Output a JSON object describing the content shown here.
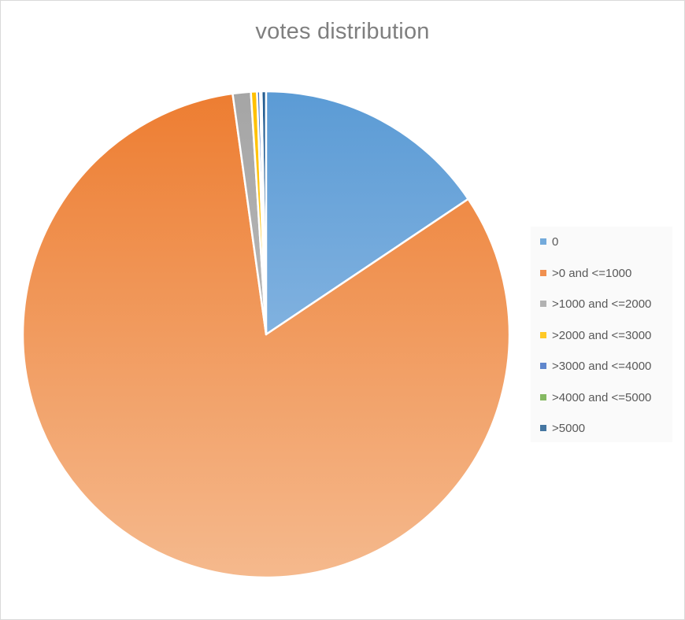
{
  "chart_data": {
    "type": "pie",
    "title": "votes distribution",
    "legend_position": "right",
    "categories": [
      ">5000",
      "0",
      ">0 and <=1000",
      ">1000 and <=2000",
      ">2000 and <=3000",
      ">3000 and <=4000",
      ">4000 and <=5000"
    ],
    "legend_order": [
      "0",
      ">0 and <=1000",
      ">1000 and <=2000",
      ">2000 and <=3000",
      ">3000 and <=4000",
      ">4000 and <=5000",
      ">5000"
    ],
    "series": [
      {
        "values": [
          0.3,
          15.6,
          82.2,
          1.2,
          0.4,
          0.2,
          0.1
        ]
      }
    ],
    "colors": {
      "0": [
        "#5b9bd5",
        "#a6c8ea"
      ],
      ">0 and <=1000": [
        "#ed7d31",
        "#f5b98d"
      ],
      ">1000 and <=2000": [
        "#a5a5a5",
        "#c9c9c9"
      ],
      ">2000 and <=3000": [
        "#ffc000",
        "#ffd966"
      ],
      ">3000 and <=4000": [
        "#4472c4",
        "#8faadc"
      ],
      ">4000 and <=5000": [
        "#70ad47",
        "#a9d18e"
      ],
      ">5000": [
        "#255e91",
        "#4f86c6"
      ]
    }
  }
}
